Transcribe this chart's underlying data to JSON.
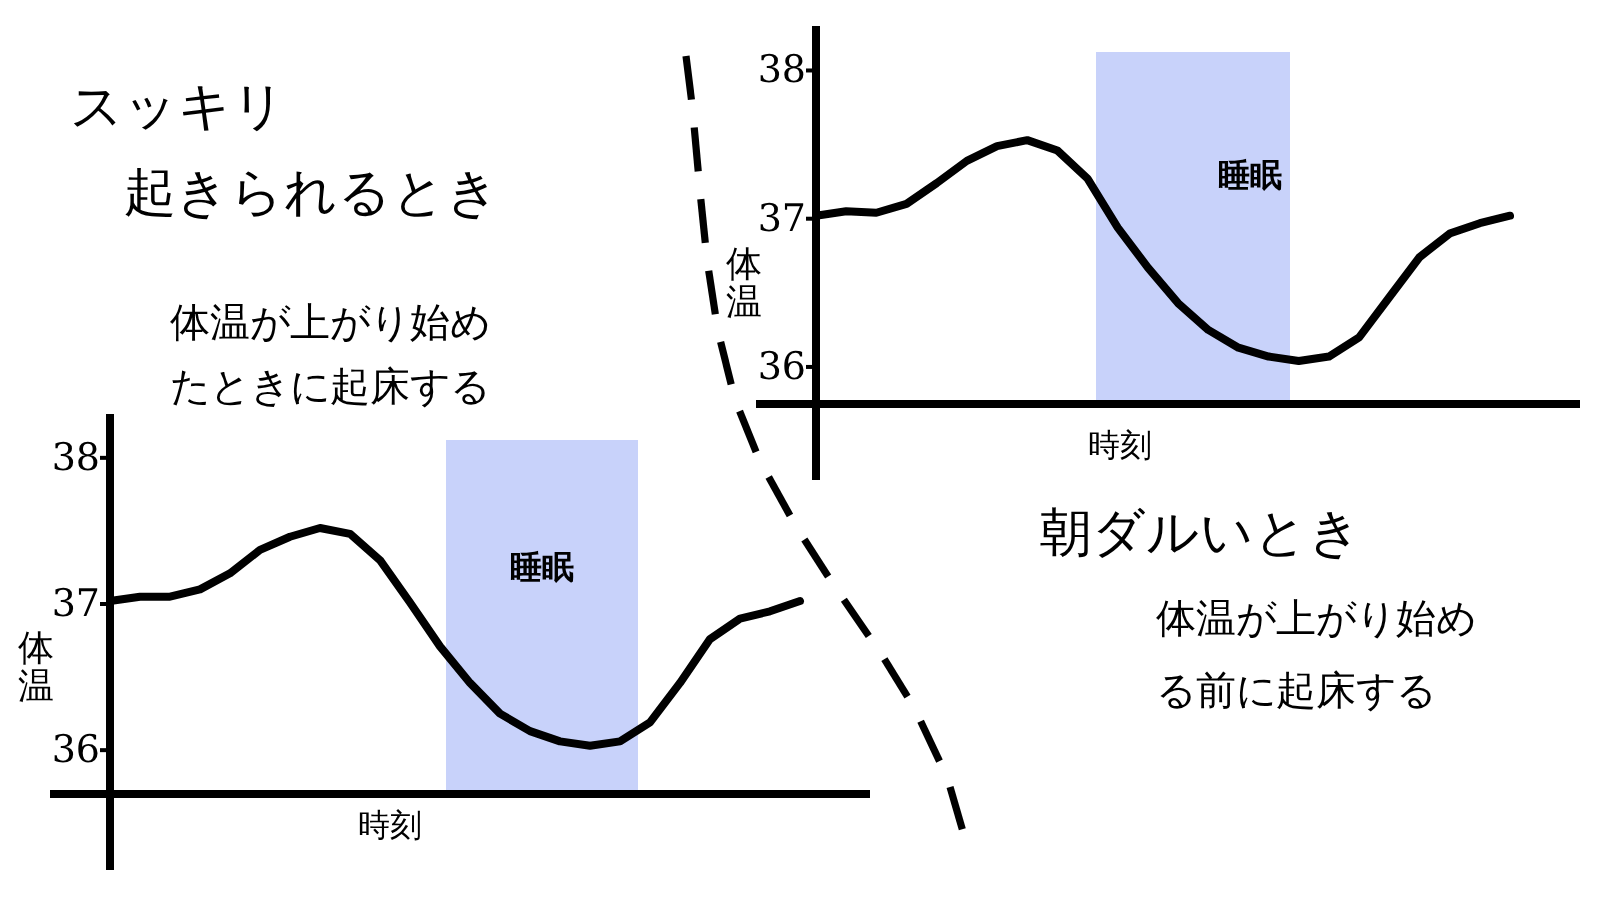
{
  "chart_data": [
    {
      "type": "line",
      "annotations": [
        "スッキリ",
        "起きられるとき",
        "体温が上がり始め",
        "たときに起床する",
        "睡眠"
      ],
      "xlabel": "時刻",
      "ylabel": "体温",
      "color": "#000000",
      "categories": [
        null,
        null,
        null,
        null,
        null,
        null,
        null,
        null,
        null,
        null,
        null,
        null,
        null,
        null,
        null,
        null,
        null,
        null,
        null,
        null,
        null,
        null,
        null,
        null
      ],
      "values": [
        37.02,
        37.05,
        37.05,
        37.1,
        37.21,
        37.37,
        37.46,
        37.52,
        37.48,
        37.3,
        37.01,
        36.71,
        36.46,
        36.25,
        36.13,
        36.06,
        36.03,
        36.06,
        36.19,
        36.46,
        36.76,
        36.9,
        36.95,
        37.02
      ],
      "ylim": [
        35.7,
        38.3
      ],
      "yticks": [
        36,
        37,
        38
      ]
    },
    {
      "type": "line",
      "title": "朝ダルいとき",
      "annotations": [
        "体温が上がり始め",
        "る前に起床する",
        "睡眠"
      ],
      "xlabel": "時刻",
      "ylabel": "体温",
      "color": "#000000",
      "categories": [
        null,
        null,
        null,
        null,
        null,
        null,
        null,
        null,
        null,
        null,
        null,
        null,
        null,
        null,
        null,
        null,
        null,
        null,
        null,
        null,
        null,
        null,
        null,
        null
      ],
      "values": [
        37.02,
        37.05,
        37.04,
        37.1,
        37.24,
        37.39,
        37.49,
        37.53,
        37.46,
        37.27,
        36.94,
        36.67,
        36.43,
        36.25,
        36.13,
        36.07,
        36.04,
        36.07,
        36.2,
        36.47,
        36.74,
        36.9,
        36.97,
        37.02
      ],
      "ylim": [
        35.75,
        38.3
      ],
      "yticks": [
        36,
        37,
        38
      ]
    }
  ]
}
